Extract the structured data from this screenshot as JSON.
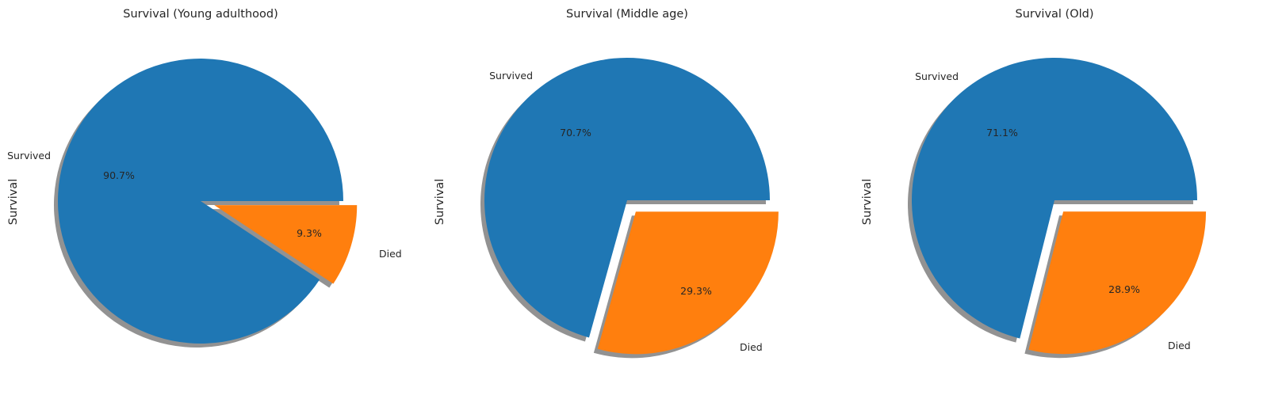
{
  "chart_data": [
    {
      "type": "pie",
      "title": "Survival (Young adulthood)",
      "ylabel": "Survival",
      "categories": [
        "Survived",
        "Died"
      ],
      "values": [
        90.7,
        9.3
      ],
      "percent_labels": [
        "90.7%",
        "9.3%"
      ],
      "explode": [
        0,
        0.1
      ],
      "shadow": true,
      "colors": [
        "#1f77b4",
        "#ff7f0e"
      ]
    },
    {
      "type": "pie",
      "title": "Survival (Middle age)",
      "ylabel": "Survival",
      "categories": [
        "Survived",
        "Died"
      ],
      "values": [
        70.7,
        29.3
      ],
      "percent_labels": [
        "70.7%",
        "29.3%"
      ],
      "explode": [
        0,
        0.1
      ],
      "shadow": true,
      "colors": [
        "#1f77b4",
        "#ff7f0e"
      ]
    },
    {
      "type": "pie",
      "title": "Survival (Old)",
      "ylabel": "Survival",
      "categories": [
        "Survived",
        "Died"
      ],
      "values": [
        71.1,
        28.9
      ],
      "percent_labels": [
        "71.1%",
        "28.9%"
      ],
      "explode": [
        0,
        0.1
      ],
      "shadow": true,
      "colors": [
        "#1f77b4",
        "#ff7f0e"
      ]
    }
  ]
}
